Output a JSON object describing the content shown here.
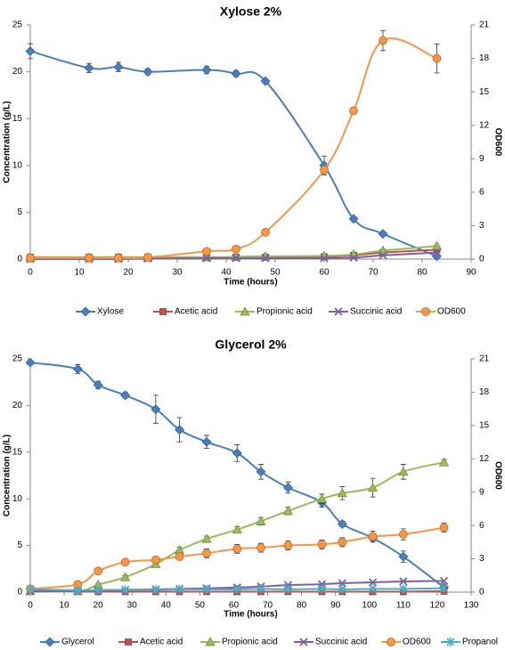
{
  "chart_data": [
    {
      "type": "line",
      "title": "Xylose 2%",
      "xlabel": "Time (hours)",
      "ylabel": "Concentration (g/L)",
      "y2label": "OD600",
      "xlim": [
        0,
        90
      ],
      "xticks": [
        0,
        10,
        20,
        30,
        40,
        50,
        60,
        70,
        80,
        90
      ],
      "ylim": [
        0,
        25
      ],
      "yticks": [
        0,
        5,
        10,
        15,
        20,
        25
      ],
      "y2lim": [
        0,
        21
      ],
      "y2ticks": [
        0,
        3,
        6,
        9,
        12,
        15,
        18,
        21
      ],
      "grid": false,
      "legend_position": "bottom",
      "series": [
        {
          "name": "Xylose",
          "axis": "left",
          "color": "#4a7ebb",
          "marker": "diamond",
          "x": [
            0,
            12,
            18,
            24,
            36,
            42,
            48,
            60,
            66,
            72,
            83
          ],
          "y": [
            22.2,
            20.4,
            20.5,
            20.0,
            20.2,
            19.8,
            19.0,
            10.0,
            4.3,
            2.7,
            0.3
          ],
          "err": [
            0.8,
            0.5,
            0.5,
            0.3,
            0.4,
            0.3,
            0.2,
            1.0,
            0.2,
            0.2,
            0.1
          ]
        },
        {
          "name": "Acetic acid",
          "axis": "left",
          "color": "#c0504d",
          "marker": "square",
          "x": [
            0,
            12,
            18,
            24,
            36,
            42,
            48,
            60,
            66,
            72,
            83
          ],
          "y": [
            0.2,
            0.2,
            0.2,
            0.2,
            0.2,
            0.2,
            0.2,
            0.25,
            0.4,
            0.7,
            1.0
          ]
        },
        {
          "name": "Propionic acid",
          "axis": "left",
          "color": "#9bbb59",
          "marker": "triangle",
          "x": [
            0,
            12,
            18,
            24,
            36,
            42,
            48,
            60,
            66,
            72,
            83
          ],
          "y": [
            0.2,
            0.2,
            0.2,
            0.2,
            0.2,
            0.25,
            0.3,
            0.35,
            0.5,
            0.9,
            1.4
          ]
        },
        {
          "name": "Succinic acid",
          "axis": "left",
          "color": "#7d60a0",
          "marker": "x",
          "x": [
            0,
            12,
            18,
            24,
            36,
            42,
            48,
            60,
            66,
            72,
            83
          ],
          "y": [
            0.0,
            0.0,
            0.0,
            0.05,
            0.1,
            0.1,
            0.1,
            0.1,
            0.15,
            0.4,
            0.7
          ]
        },
        {
          "name": "OD600",
          "axis": "right",
          "color": "#f79646",
          "marker": "circle",
          "x": [
            0,
            12,
            18,
            24,
            36,
            42,
            48,
            60,
            66,
            72,
            83
          ],
          "y": [
            0.1,
            0.1,
            0.1,
            0.15,
            0.7,
            0.9,
            2.4,
            8.0,
            13.3,
            19.6,
            18.0
          ],
          "err": [
            0.05,
            0.05,
            0.05,
            0.05,
            0.1,
            0.1,
            0.1,
            0.3,
            0.3,
            0.9,
            1.3
          ]
        }
      ]
    },
    {
      "type": "line",
      "title": "Glycerol 2%",
      "xlabel": "Time (hours)",
      "ylabel": "Concentration (g/L)",
      "y2label": "OD600",
      "xlim": [
        0,
        130
      ],
      "xticks": [
        0,
        10,
        20,
        30,
        40,
        50,
        60,
        70,
        80,
        90,
        100,
        110,
        120,
        130
      ],
      "ylim": [
        0,
        25
      ],
      "yticks": [
        0,
        5,
        10,
        15,
        20,
        25
      ],
      "y2lim": [
        0,
        21
      ],
      "y2ticks": [
        0,
        3,
        6,
        9,
        12,
        15,
        18,
        21
      ],
      "grid": false,
      "legend_position": "bottom",
      "series": [
        {
          "name": "Glycerol",
          "axis": "left",
          "color": "#4a7ebb",
          "marker": "diamond",
          "x": [
            0,
            14,
            20,
            28,
            37,
            44,
            52,
            61,
            68,
            76,
            86,
            92,
            101,
            110,
            122
          ],
          "y": [
            24.6,
            23.9,
            22.2,
            21.1,
            19.6,
            17.4,
            16.1,
            14.9,
            12.9,
            11.2,
            9.6,
            7.3,
            5.8,
            3.8,
            0.5
          ],
          "err": [
            0.2,
            0.5,
            0.4,
            0.3,
            1.5,
            1.3,
            0.7,
            0.9,
            0.8,
            0.6,
            0.5,
            0.3,
            0.3,
            0.6,
            0.2
          ]
        },
        {
          "name": "Acetic acid",
          "axis": "left",
          "color": "#c0504d",
          "marker": "square",
          "x": [
            0,
            14,
            20,
            28,
            37,
            44,
            52,
            61,
            68,
            76,
            86,
            92,
            101,
            110,
            122
          ],
          "y": [
            0.1,
            0.05,
            0.05,
            0.05,
            0.05,
            0.05,
            0.05,
            0.05,
            0.05,
            0.05,
            0.05,
            0.05,
            0.05,
            0.05,
            0.1
          ]
        },
        {
          "name": "Propionic acid",
          "axis": "left",
          "color": "#9bbb59",
          "marker": "triangle",
          "x": [
            0,
            14,
            20,
            28,
            37,
            44,
            52,
            61,
            68,
            76,
            86,
            92,
            101,
            110,
            122
          ],
          "y": [
            0.1,
            0.1,
            0.8,
            1.6,
            3.0,
            4.5,
            5.7,
            6.7,
            7.6,
            8.7,
            10.0,
            10.6,
            11.2,
            12.9,
            13.9
          ],
          "err": [
            0.05,
            0.05,
            0.1,
            0.2,
            0.3,
            0.3,
            0.3,
            0.3,
            0.4,
            0.4,
            0.5,
            0.7,
            1.0,
            0.8,
            0.3
          ]
        },
        {
          "name": "Succinic acid",
          "axis": "left",
          "color": "#7d60a0",
          "marker": "x",
          "x": [
            0,
            14,
            20,
            28,
            37,
            44,
            52,
            61,
            68,
            76,
            86,
            92,
            101,
            110,
            122
          ],
          "y": [
            0.1,
            0.1,
            0.2,
            0.25,
            0.3,
            0.35,
            0.4,
            0.5,
            0.6,
            0.75,
            0.85,
            0.95,
            1.05,
            1.15,
            1.2
          ]
        },
        {
          "name": "OD600",
          "axis": "right",
          "color": "#f79646",
          "marker": "circle",
          "x": [
            0,
            14,
            20,
            28,
            37,
            44,
            52,
            61,
            68,
            76,
            86,
            92,
            101,
            110,
            122
          ],
          "y": [
            0.3,
            0.7,
            1.9,
            2.7,
            2.9,
            3.2,
            3.5,
            3.9,
            4.0,
            4.2,
            4.3,
            4.5,
            5.0,
            5.2,
            5.8
          ],
          "err": [
            0.05,
            0.1,
            0.2,
            0.2,
            0.3,
            0.3,
            0.4,
            0.4,
            0.4,
            0.4,
            0.4,
            0.4,
            0.5,
            0.5,
            0.4
          ]
        },
        {
          "name": "Propanol",
          "axis": "left",
          "color": "#4bacc6",
          "marker": "star",
          "x": [
            0,
            14,
            20,
            28,
            37,
            44,
            52,
            61,
            68,
            76,
            86,
            92,
            101,
            110,
            122
          ],
          "y": [
            0.3,
            0.2,
            0.2,
            0.25,
            0.25,
            0.3,
            0.3,
            0.3,
            0.35,
            0.3,
            0.35,
            0.3,
            0.35,
            0.35,
            0.4
          ]
        }
      ]
    }
  ]
}
